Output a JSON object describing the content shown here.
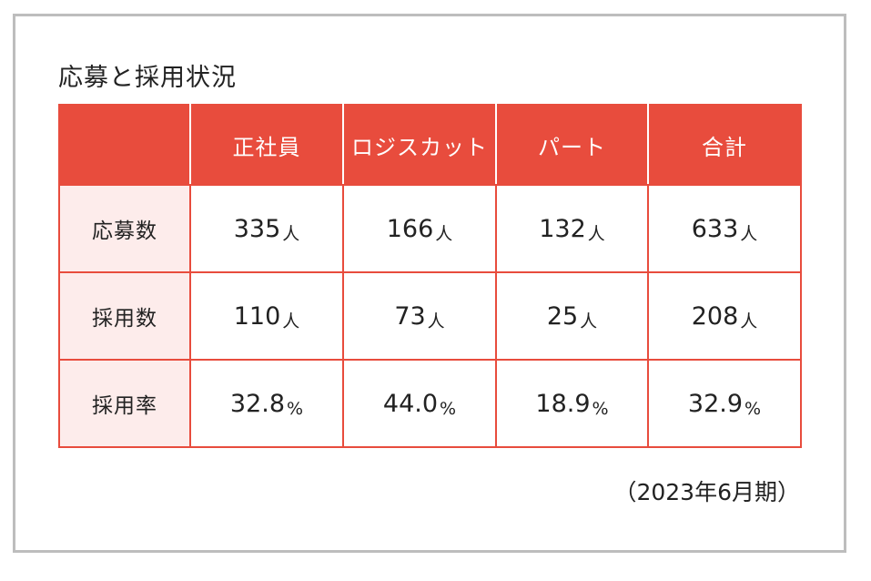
{
  "title": "応募と採用状況",
  "table": {
    "columns": [
      "",
      "正社員",
      "ロジスカット",
      "パート",
      "合計"
    ],
    "rows": [
      {
        "label": "応募数",
        "cells": [
          {
            "value": "335",
            "unit": "人"
          },
          {
            "value": "166",
            "unit": "人"
          },
          {
            "value": "132",
            "unit": "人"
          },
          {
            "value": "633",
            "unit": "人"
          }
        ]
      },
      {
        "label": "採用数",
        "cells": [
          {
            "value": "110",
            "unit": "人"
          },
          {
            "value": "73",
            "unit": "人"
          },
          {
            "value": "25",
            "unit": "人"
          },
          {
            "value": "208",
            "unit": "人"
          }
        ]
      },
      {
        "label": "採用率",
        "cells": [
          {
            "value": "32.8",
            "unit": "%"
          },
          {
            "value": "44.0",
            "unit": "%"
          },
          {
            "value": "18.9",
            "unit": "%"
          },
          {
            "value": "32.9",
            "unit": "%"
          }
        ]
      }
    ]
  },
  "note": "（2023年6月期）",
  "colors": {
    "header_bg": "#e84c3d",
    "row_label_bg": "#fdeceb",
    "border": "#e84c3d",
    "frame": "#bdbdbd"
  }
}
